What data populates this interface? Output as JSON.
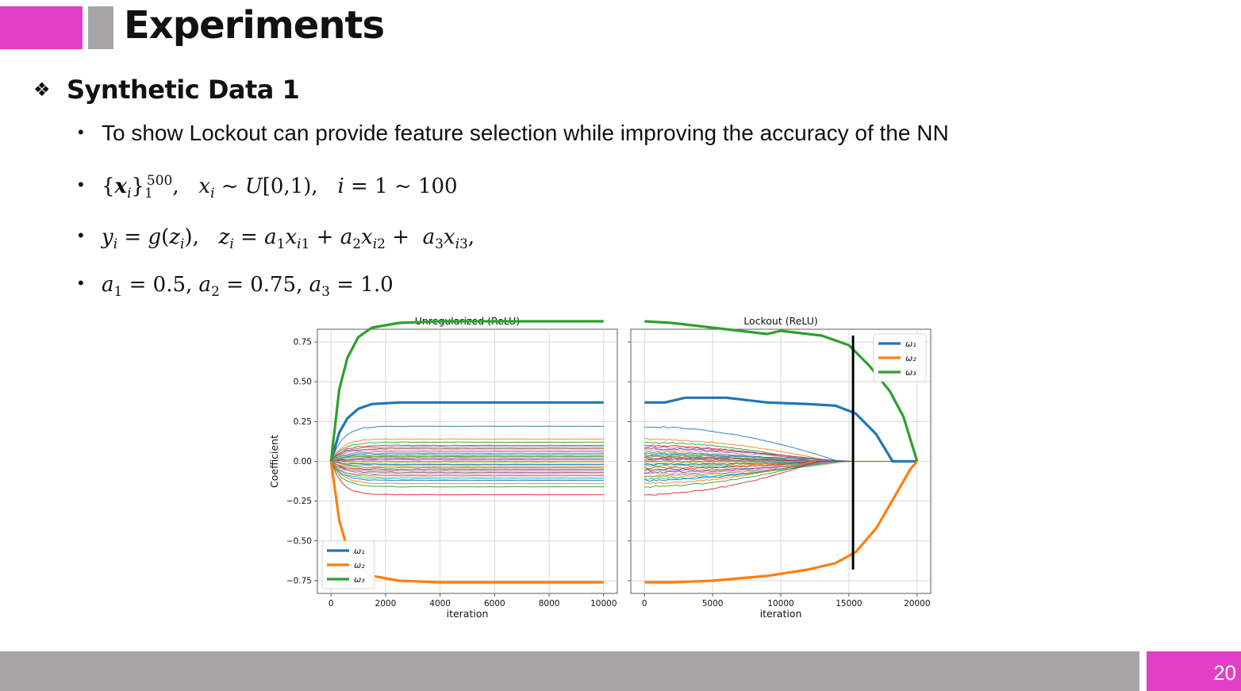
{
  "slide": {
    "title": "Experiments",
    "section": "Synthetic Data 1",
    "section_bullet": "❖",
    "bullet1": "To show Lockout can provide feature selection while improving the accuracy of the NN",
    "page_number": "20",
    "accent_color": "#e23fc6",
    "bar_color": "#a8a5a5"
  },
  "chart_data": [
    {
      "type": "line",
      "title": "Unregularized (ReLU)",
      "xlabel": "iteration",
      "ylabel": "Coefficient",
      "xlim": [
        -500,
        10500
      ],
      "ylim": [
        -0.83,
        0.83
      ],
      "xticks": [
        0,
        2000,
        4000,
        6000,
        8000,
        10000
      ],
      "yticks": [
        -0.75,
        -0.5,
        -0.25,
        0.0,
        0.25,
        0.5,
        0.75
      ],
      "ytick_labels": [
        "−0.75",
        "−0.50",
        "−0.25",
        "0.00",
        "0.25",
        "0.50",
        "0.75"
      ],
      "grid": true,
      "legend": "lower-left",
      "series": [
        {
          "name": "ω₁",
          "color": "#1f77b4",
          "x": [
            0,
            300,
            600,
            1000,
            1500,
            2500,
            4000,
            10000
          ],
          "y": [
            0.0,
            0.18,
            0.27,
            0.33,
            0.36,
            0.37,
            0.37,
            0.37
          ]
        },
        {
          "name": "ω₂",
          "color": "#ff7f0e",
          "x": [
            0,
            300,
            600,
            1000,
            1500,
            2500,
            4000,
            10000
          ],
          "y": [
            0.0,
            -0.37,
            -0.55,
            -0.66,
            -0.72,
            -0.75,
            -0.76,
            -0.76
          ]
        },
        {
          "name": "ω₃",
          "color": "#2ca02c",
          "x": [
            0,
            300,
            600,
            1000,
            1500,
            2500,
            4000,
            10000
          ],
          "y": [
            0.0,
            0.45,
            0.65,
            0.78,
            0.84,
            0.87,
            0.88,
            0.88
          ]
        }
      ],
      "noise_final": [
        0.22,
        0.14,
        0.12,
        0.1,
        0.09,
        0.08,
        0.07,
        0.06,
        0.05,
        0.05,
        0.04,
        0.03,
        0.03,
        0.02,
        0.02,
        0.01,
        0.0,
        0.0,
        -0.01,
        -0.02,
        -0.02,
        -0.03,
        -0.04,
        -0.05,
        -0.06,
        -0.07,
        -0.08,
        -0.09,
        -0.1,
        -0.11,
        -0.12,
        -0.14,
        -0.16,
        -0.21
      ]
    },
    {
      "type": "line",
      "title": "Lockout (ReLU)",
      "xlabel": "iteration",
      "ylabel": "",
      "xlim": [
        -1000,
        21000
      ],
      "ylim": [
        -0.83,
        0.83
      ],
      "xticks": [
        0,
        5000,
        10000,
        15000,
        20000
      ],
      "yticks": [
        -0.75,
        -0.5,
        -0.25,
        0.0,
        0.25,
        0.5,
        0.75
      ],
      "grid": true,
      "legend": "upper-right",
      "vline": {
        "x": 15300,
        "ymin": -0.68,
        "ymax": 0.79,
        "color": "#000000"
      },
      "series": [
        {
          "name": "ω₁",
          "color": "#1f77b4",
          "x": [
            0,
            1500,
            3000,
            6000,
            9000,
            12000,
            14000,
            15500,
            17000,
            18200,
            20000
          ],
          "y": [
            0.37,
            0.37,
            0.4,
            0.4,
            0.37,
            0.36,
            0.35,
            0.3,
            0.17,
            0.0,
            0.0
          ]
        },
        {
          "name": "ω₂",
          "color": "#ff7f0e",
          "x": [
            0,
            2000,
            5000,
            9000,
            12000,
            14000,
            15500,
            17000,
            18500,
            19500,
            20000
          ],
          "y": [
            -0.76,
            -0.76,
            -0.75,
            -0.72,
            -0.68,
            -0.64,
            -0.57,
            -0.42,
            -0.2,
            -0.05,
            0.0
          ]
        },
        {
          "name": "ω₃",
          "color": "#2ca02c",
          "x": [
            0,
            2000,
            5000,
            9000,
            10000,
            13000,
            15000,
            16500,
            18000,
            19000,
            20000
          ],
          "y": [
            0.88,
            0.87,
            0.84,
            0.8,
            0.82,
            0.79,
            0.73,
            0.6,
            0.44,
            0.28,
            0.0
          ]
        }
      ],
      "noise_start": [
        0.22,
        0.14,
        0.12,
        0.1,
        0.09,
        0.08,
        0.07,
        0.06,
        0.05,
        0.05,
        0.04,
        0.03,
        0.03,
        0.02,
        0.02,
        0.01,
        0.0,
        0.0,
        -0.01,
        -0.02,
        -0.02,
        -0.03,
        -0.04,
        -0.05,
        -0.06,
        -0.07,
        -0.08,
        -0.09,
        -0.1,
        -0.11,
        -0.12,
        -0.14,
        -0.16,
        -0.21
      ]
    }
  ]
}
